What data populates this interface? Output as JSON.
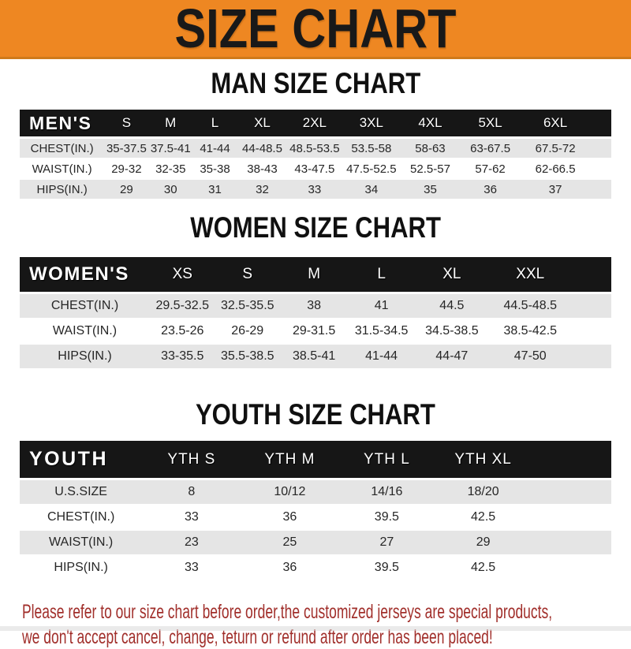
{
  "banner": {
    "title": "SIZE CHART"
  },
  "colors": {
    "banner_bg": "#ee8722",
    "bar_bg": "#161616",
    "row_alt": "#e5e5e5",
    "notice_text": "#a12f2b"
  },
  "sections": [
    {
      "title": "MAN SIZE CHART",
      "table": {
        "header": [
          "MEN'S",
          "S",
          "M",
          "L",
          "XL",
          "2XL",
          "3XL",
          "4XL",
          "5XL",
          "6XL"
        ],
        "rows": [
          [
            "CHEST(IN.)",
            "35-37.5",
            "37.5-41",
            "41-44",
            "44-48.5",
            "48.5-53.5",
            "53.5-58",
            "58-63",
            "63-67.5",
            "67.5-72"
          ],
          [
            "WAIST(IN.)",
            "29-32",
            "32-35",
            "35-38",
            "38-43",
            "43-47.5",
            "47.5-52.5",
            "52.5-57",
            "57-62",
            "62-66.5"
          ],
          [
            "HIPS(IN.)",
            "29",
            "30",
            "31",
            "32",
            "33",
            "34",
            "35",
            "36",
            "37"
          ]
        ]
      }
    },
    {
      "title": "WOMEN SIZE CHART",
      "table": {
        "header": [
          "WOMEN'S",
          "XS",
          "S",
          "M",
          "L",
          "XL",
          "XXL"
        ],
        "rows": [
          [
            "CHEST(IN.)",
            "29.5-32.5",
            "32.5-35.5",
            "38",
            "41",
            "44.5",
            "44.5-48.5"
          ],
          [
            "WAIST(IN.)",
            "23.5-26",
            "26-29",
            "29-31.5",
            "31.5-34.5",
            "34.5-38.5",
            "38.5-42.5"
          ],
          [
            "HIPS(IN.)",
            "33-35.5",
            "35.5-38.5",
            "38.5-41",
            "41-44",
            "44-47",
            "47-50"
          ]
        ]
      }
    },
    {
      "title": "YOUTH SIZE CHART",
      "table": {
        "header": [
          "YOUTH",
          "YTH S",
          "YTH M",
          "YTH L",
          "YTH XL"
        ],
        "rows": [
          [
            "U.S.SIZE",
            "8",
            "10/12",
            "14/16",
            "18/20"
          ],
          [
            "CHEST(IN.)",
            "33",
            "36",
            "39.5",
            "42.5"
          ],
          [
            "WAIST(IN.)",
            "23",
            "25",
            "27",
            "29"
          ],
          [
            "HIPS(IN.)",
            "33",
            "36",
            "39.5",
            "42.5"
          ]
        ]
      }
    }
  ],
  "footer": {
    "lines": [
      "Please refer to our size chart before order,the customized jerseys are special products,",
      "we don't accept cancel, change, teturn or refund after order has been placed!"
    ]
  }
}
